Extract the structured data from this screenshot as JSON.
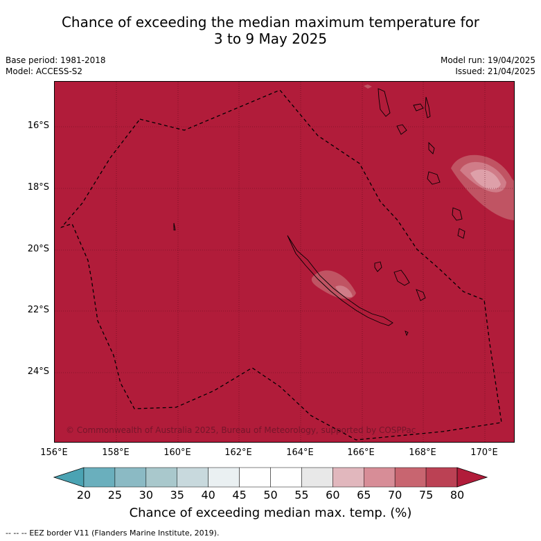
{
  "title": {
    "line1": "Chance of exceeding the median maximum temperature for",
    "line2": "3 to 9 May 2025"
  },
  "meta": {
    "base_period": "Base period: 1981-2018",
    "model": "Model: ACCESS-S2",
    "model_run": "Model run: 19/04/2025",
    "issued": "Issued: 21/04/2025"
  },
  "map": {
    "background_probability_class": "75-80+",
    "background_color": "#b11c3a",
    "copyright": "© Commonwealth of Australia 2025, Bureau of Meteorology, supported by COSPPac",
    "lon_ticks": [
      "156°E",
      "158°E",
      "160°E",
      "162°E",
      "164°E",
      "166°E",
      "168°E",
      "170°E"
    ],
    "lat_ticks": [
      "16°S",
      "18°S",
      "20°S",
      "22°S",
      "24°S"
    ],
    "gridlines": true,
    "features": [
      "coastlines",
      "EEZ border (dashed)"
    ]
  },
  "colorbar": {
    "ticks": [
      "20",
      "25",
      "30",
      "35",
      "40",
      "45",
      "50",
      "55",
      "60",
      "65",
      "70",
      "75",
      "80"
    ],
    "colors": [
      "#4ba3b3",
      "#6aafbd",
      "#8bbac4",
      "#a9c8cc",
      "#c8d9dd",
      "#eaf0f2",
      "#ffffff",
      "#ffffff",
      "#e8e8e8",
      "#e1b7bd",
      "#d78d97",
      "#c86570",
      "#bb4154",
      "#b11c3a"
    ],
    "label": "Chance of exceeding median max. temp. (%)"
  },
  "legend": {
    "eez_symbol": "--  --  --",
    "eez_text": "EEZ border V11 (Flanders Marine Institute, 2019)."
  }
}
